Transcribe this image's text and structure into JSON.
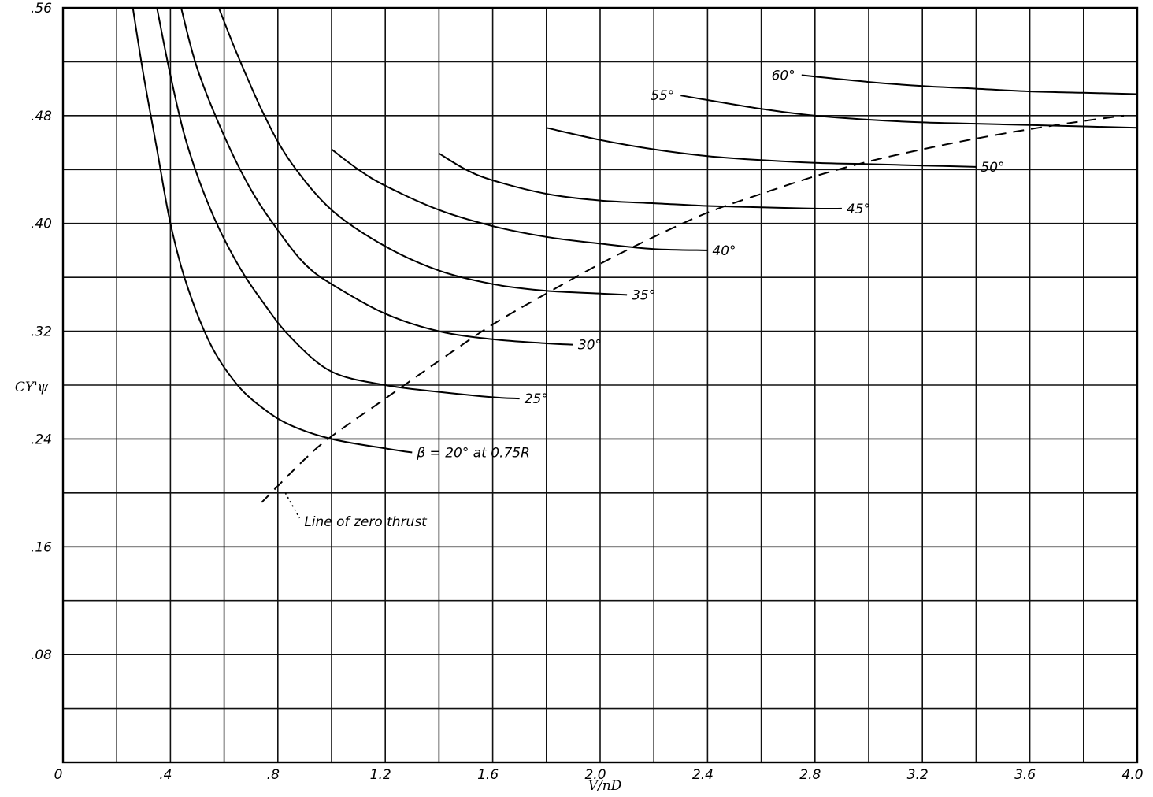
{
  "chart_data": {
    "type": "line",
    "xlabel": "V/nD",
    "ylabel": "CY'ψ",
    "xlim": [
      0,
      4.0
    ],
    "ylim": [
      0,
      0.56
    ],
    "x_ticks": [
      0,
      0.4,
      0.8,
      1.2,
      1.6,
      2.0,
      2.4,
      2.8,
      3.2,
      3.6,
      4.0
    ],
    "x_tick_labels": [
      "0",
      ".4",
      ".8",
      "1.2",
      "1.6",
      "2.0",
      "2.4",
      "2.8",
      "3.2",
      "3.6",
      "4.0"
    ],
    "y_ticks": [
      0.08,
      0.16,
      0.24,
      0.32,
      0.4,
      0.48,
      0.56
    ],
    "y_tick_labels": [
      ".08",
      ".16",
      ".24",
      ".32",
      ".40",
      ".48",
      ".56"
    ],
    "grid": true,
    "series": [
      {
        "name": "β = 20° at 0.75R",
        "label": "β = 20° at 0.75R",
        "x": [
          0.26,
          0.3,
          0.35,
          0.4,
          0.46,
          0.55,
          0.65,
          0.75,
          0.85,
          1.0,
          1.2,
          1.3
        ],
        "y": [
          0.56,
          0.51,
          0.455,
          0.4,
          0.355,
          0.31,
          0.28,
          0.262,
          0.25,
          0.24,
          0.233,
          0.23
        ]
      },
      {
        "name": "25°",
        "label": "25°",
        "x": [
          0.35,
          0.4,
          0.46,
          0.55,
          0.65,
          0.75,
          0.85,
          1.0,
          1.2,
          1.4,
          1.6,
          1.7
        ],
        "y": [
          0.56,
          0.51,
          0.46,
          0.41,
          0.37,
          0.34,
          0.315,
          0.29,
          0.28,
          0.275,
          0.271,
          0.27
        ]
      },
      {
        "name": "30°",
        "label": "30°",
        "x": [
          0.44,
          0.5,
          0.6,
          0.7,
          0.8,
          0.9,
          1.0,
          1.2,
          1.4,
          1.6,
          1.8,
          1.9
        ],
        "y": [
          0.56,
          0.515,
          0.465,
          0.425,
          0.395,
          0.37,
          0.355,
          0.333,
          0.32,
          0.314,
          0.311,
          0.31
        ]
      },
      {
        "name": "35°",
        "label": "35°",
        "x": [
          0.58,
          0.65,
          0.75,
          0.85,
          1.0,
          1.2,
          1.4,
          1.6,
          1.8,
          2.0,
          2.1
        ],
        "y": [
          0.56,
          0.525,
          0.48,
          0.445,
          0.41,
          0.383,
          0.365,
          0.355,
          0.35,
          0.348,
          0.347
        ]
      },
      {
        "name": "40°",
        "label": "40°",
        "x": [
          1.0,
          1.1,
          1.2,
          1.4,
          1.6,
          1.8,
          2.0,
          2.2,
          2.4
        ],
        "y": [
          0.455,
          0.44,
          0.428,
          0.41,
          0.398,
          0.39,
          0.385,
          0.381,
          0.38
        ]
      },
      {
        "name": "45°",
        "label": "45°",
        "x": [
          1.4,
          1.5,
          1.6,
          1.8,
          2.0,
          2.2,
          2.4,
          2.6,
          2.8,
          2.9
        ],
        "y": [
          0.452,
          0.44,
          0.432,
          0.422,
          0.417,
          0.415,
          0.413,
          0.412,
          0.411,
          0.411
        ]
      },
      {
        "name": "50°",
        "label": "50°",
        "x": [
          1.8,
          2.0,
          2.2,
          2.4,
          2.6,
          2.8,
          3.0,
          3.2,
          3.4
        ],
        "y": [
          0.471,
          0.462,
          0.455,
          0.45,
          0.447,
          0.445,
          0.444,
          0.443,
          0.442
        ]
      },
      {
        "name": "55°",
        "label": "55°",
        "x": [
          2.3,
          2.6,
          2.8,
          3.0,
          3.2,
          3.4,
          3.6,
          3.8,
          4.0
        ],
        "y": [
          0.495,
          0.485,
          0.48,
          0.477,
          0.475,
          0.474,
          0.473,
          0.472,
          0.471
        ]
      },
      {
        "name": "60°",
        "label": "60°",
        "x": [
          2.75,
          3.0,
          3.2,
          3.4,
          3.6,
          3.8,
          4.0
        ],
        "y": [
          0.51,
          0.505,
          0.502,
          0.5,
          0.498,
          0.497,
          0.496
        ]
      },
      {
        "name": "Line of zero thrust",
        "label": "Line of zero thrust",
        "style": "dashed",
        "x": [
          0.74,
          0.9,
          1.0,
          1.2,
          1.4,
          1.6,
          1.8,
          2.0,
          2.2,
          2.4,
          2.6,
          2.8,
          3.0,
          3.2,
          3.4,
          3.6,
          3.8,
          3.95
        ],
        "y": [
          0.193,
          0.225,
          0.242,
          0.27,
          0.298,
          0.325,
          0.348,
          0.37,
          0.39,
          0.408,
          0.422,
          0.435,
          0.446,
          0.455,
          0.463,
          0.47,
          0.476,
          0.48
        ]
      }
    ]
  }
}
